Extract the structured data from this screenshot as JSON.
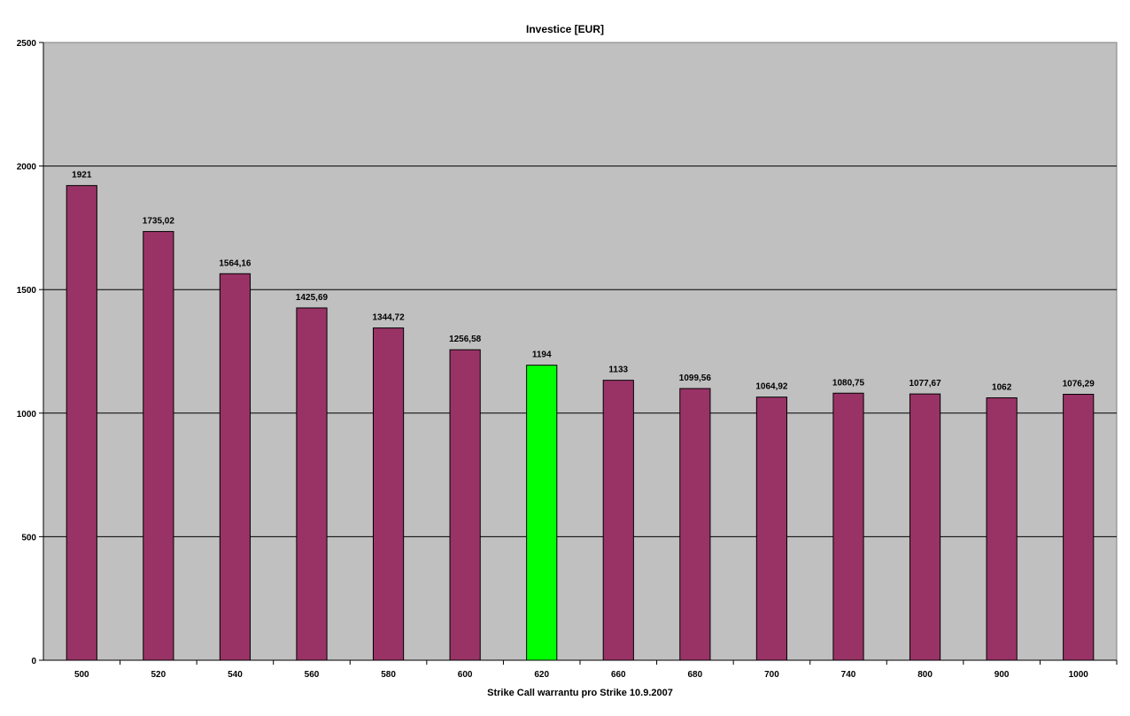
{
  "chart_data": {
    "type": "bar",
    "title": "Investice [EUR]",
    "xlabel": "Strike Call warrantu pro Strike 10.9.2007",
    "ylabel": "",
    "ylim": [
      0,
      2500
    ],
    "yticks": [
      "0",
      "500",
      "1000",
      "1500",
      "2000",
      "2500"
    ],
    "categories": [
      "500",
      "520",
      "540",
      "560",
      "580",
      "600",
      "620",
      "660",
      "680",
      "700",
      "740",
      "800",
      "900",
      "1000"
    ],
    "values": [
      1921,
      1735.02,
      1564.16,
      1425.69,
      1344.72,
      1256.58,
      1194,
      1133,
      1099.56,
      1064.92,
      1080.75,
      1077.67,
      1062,
      1076.29
    ],
    "value_labels": [
      "1921",
      "1735,02",
      "1564,16",
      "1425,69",
      "1344,72",
      "1256,58",
      "1194",
      "1133",
      "1099,56",
      "1064,92",
      "1080,75",
      "1077,67",
      "1062",
      "1076,29"
    ],
    "highlight_index": 6,
    "grid": true,
    "legend": "none",
    "colors": {
      "bar": "#993366",
      "highlight": "#00ff00",
      "plot_background": "#c0c0c0",
      "gridline": "#000000"
    }
  }
}
